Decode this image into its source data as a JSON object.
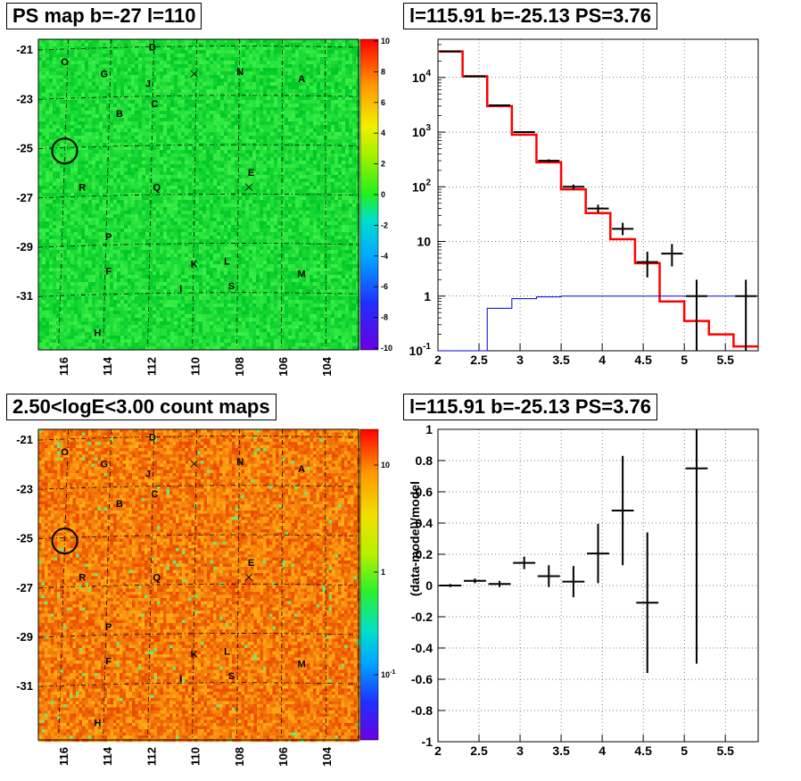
{
  "titles": {
    "ps_map": "PS map b=-27 l=110",
    "count_map": "2.50<logE<3.00 count maps",
    "spectrum": "l=115.91 b=-25.13 PS=3.76",
    "residual": "l=115.91 b=-25.13 PS=3.76"
  },
  "maps": {
    "lon_ticks": [
      "116",
      "114",
      "112",
      "110",
      "108",
      "106",
      "104"
    ],
    "lat_ticks": [
      "-21",
      "-23",
      "-25",
      "-27",
      "-29",
      "-31"
    ],
    "source_labels": [
      {
        "label": "O",
        "lon": 115.9,
        "lat": -21.5
      },
      {
        "label": "D",
        "lon": 111.9,
        "lat": -20.9
      },
      {
        "label": "G",
        "lon": 114.1,
        "lat": -22.0
      },
      {
        "label": "J",
        "lon": 112.1,
        "lat": -22.4
      },
      {
        "label": "N",
        "lon": 107.9,
        "lat": -21.9
      },
      {
        "label": "A",
        "lon": 105.1,
        "lat": -22.2
      },
      {
        "label": "C",
        "lon": 111.8,
        "lat": -23.2
      },
      {
        "label": "B",
        "lon": 113.4,
        "lat": -23.6
      },
      {
        "label": "E",
        "lon": 107.4,
        "lat": -26.0
      },
      {
        "label": "R",
        "lon": 115.1,
        "lat": -26.6
      },
      {
        "label": "Q",
        "lon": 111.7,
        "lat": -26.6
      },
      {
        "label": "P",
        "lon": 113.9,
        "lat": -28.6
      },
      {
        "label": "K",
        "lon": 110.0,
        "lat": -29.7
      },
      {
        "label": "L",
        "lon": 108.5,
        "lat": -29.6
      },
      {
        "label": "F",
        "lon": 113.9,
        "lat": -30.0
      },
      {
        "label": "M",
        "lon": 105.1,
        "lat": -30.1
      },
      {
        "label": "I",
        "lon": 110.6,
        "lat": -30.7
      },
      {
        "label": "S",
        "lon": 108.3,
        "lat": -30.6
      },
      {
        "label": "H",
        "lon": 114.4,
        "lat": -32.5
      }
    ],
    "crosses": [
      {
        "lon": 110.0,
        "lat": -22.0
      },
      {
        "lon": 107.5,
        "lat": -26.6
      }
    ],
    "target_circle": {
      "lon": 115.9,
      "lat": -25.13
    },
    "ps_colorbar_ticks": [
      "10",
      "8",
      "6",
      "4",
      "2",
      "0",
      "-2",
      "-4",
      "-6",
      "-8",
      "-10"
    ],
    "count_colorbar_ticks": [
      "10",
      "1",
      "10-1"
    ]
  },
  "chart_data": [
    {
      "type": "line",
      "panel": "spectrum",
      "title": "l=115.91 b=-25.13 PS=3.76",
      "xlabel": "",
      "ylabel": "",
      "xlim": [
        2,
        5.9
      ],
      "ylim": [
        0.1,
        50000
      ],
      "y_scale": "log",
      "grid": true,
      "x_ticks": [
        "2",
        "2.5",
        "3",
        "3.5",
        "4",
        "4.5",
        "5",
        "5.5"
      ],
      "y_ticks": [
        {
          "base": "10",
          "exp": "-1",
          "v": 0.1
        },
        {
          "base": "1",
          "exp": "",
          "v": 1
        },
        {
          "base": "10",
          "exp": "",
          "v": 10
        },
        {
          "base": "10",
          "exp": "2",
          "v": 100
        },
        {
          "base": "10",
          "exp": "3",
          "v": 1000
        },
        {
          "base": "10",
          "exp": "4",
          "v": 10000
        }
      ],
      "bin_edges": [
        2.0,
        2.3,
        2.6,
        2.9,
        3.2,
        3.5,
        3.8,
        4.1,
        4.4,
        4.7,
        5.0,
        5.3,
        5.6,
        5.9
      ],
      "series": [
        {
          "color": "#ff0000",
          "values": [
            30000,
            10500,
            3000,
            900,
            280,
            90,
            33,
            11,
            4,
            0.8,
            0.35,
            0.2,
            0.12
          ]
        },
        {
          "color": "#0000cc",
          "values": [
            0.08,
            0.1,
            0.6,
            0.9,
            0.97,
            1.0,
            1.0,
            1.0,
            1.0,
            1.0,
            1.0,
            1.0,
            1.0
          ]
        }
      ],
      "data_points": [
        {
          "x": 2.15,
          "y": 30000,
          "lo": 29700,
          "hi": 30300
        },
        {
          "x": 2.45,
          "y": 10500,
          "lo": 10300,
          "hi": 10700
        },
        {
          "x": 2.75,
          "y": 3100,
          "lo": 3000,
          "hi": 3200
        },
        {
          "x": 3.05,
          "y": 1000,
          "lo": 960,
          "hi": 1040
        },
        {
          "x": 3.35,
          "y": 300,
          "lo": 283,
          "hi": 318
        },
        {
          "x": 3.65,
          "y": 100,
          "lo": 90,
          "hi": 110
        },
        {
          "x": 3.95,
          "y": 40,
          "lo": 34,
          "hi": 47
        },
        {
          "x": 4.25,
          "y": 17,
          "lo": 13,
          "hi": 22
        },
        {
          "x": 4.55,
          "y": 4.2,
          "lo": 2.2,
          "hi": 6.5
        },
        {
          "x": 4.85,
          "y": 6,
          "lo": 3.5,
          "hi": 9
        },
        {
          "x": 5.15,
          "y": 1,
          "lo": 0.1,
          "hi": 2
        },
        {
          "x": 5.75,
          "y": 1,
          "lo": 0.1,
          "hi": 2
        }
      ]
    },
    {
      "type": "scatter",
      "panel": "residual",
      "title": "l=115.91 b=-25.13 PS=3.76",
      "xlabel": "",
      "ylabel": "(data-model)/model",
      "xlim": [
        2,
        5.9
      ],
      "ylim": [
        -1,
        1
      ],
      "grid": true,
      "x_ticks": [
        "2",
        "2.5",
        "3",
        "3.5",
        "4",
        "4.5",
        "5",
        "5.5"
      ],
      "y_ticks": [
        "1",
        "0.8",
        "0.6",
        "0.4",
        "0.2",
        "0",
        "-0.2",
        "-0.4",
        "-0.6",
        "-0.8",
        "-1"
      ],
      "points": [
        {
          "x": 2.15,
          "y": 0.0,
          "err": 0.01,
          "xerr": 0.15
        },
        {
          "x": 2.45,
          "y": 0.03,
          "err": 0.015,
          "xerr": 0.15
        },
        {
          "x": 2.75,
          "y": 0.01,
          "err": 0.02,
          "xerr": 0.15
        },
        {
          "x": 3.05,
          "y": 0.145,
          "err": 0.04,
          "xerr": 0.15
        },
        {
          "x": 3.35,
          "y": 0.06,
          "err": 0.07,
          "xerr": 0.15
        },
        {
          "x": 3.65,
          "y": 0.025,
          "err": 0.1,
          "xerr": 0.15
        },
        {
          "x": 3.95,
          "y": 0.205,
          "err": 0.19,
          "xerr": 0.15
        },
        {
          "x": 4.25,
          "y": 0.48,
          "err": 0.35,
          "xerr": 0.15
        },
        {
          "x": 4.55,
          "y": -0.11,
          "err": 0.45,
          "xerr": 0.15
        },
        {
          "x": 5.15,
          "y": 0.75,
          "err": 1.25,
          "xerr": 0.15
        }
      ]
    }
  ]
}
